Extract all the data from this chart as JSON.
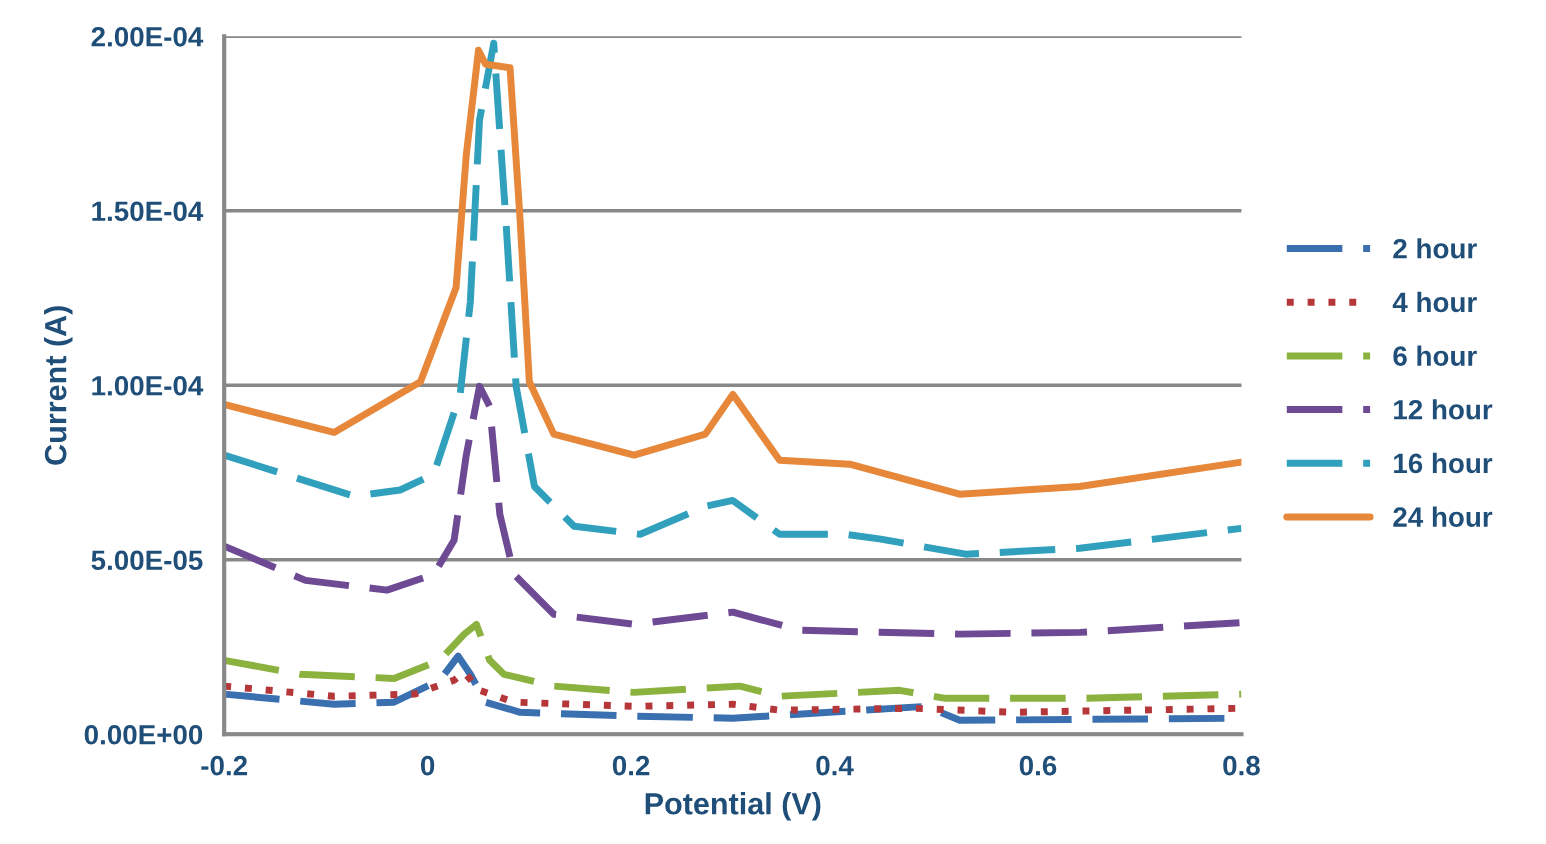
{
  "chart_data": {
    "type": "line",
    "xlabel": "Potential (V)",
    "ylabel": "Current (A)",
    "xlim": [
      -0.2,
      0.8
    ],
    "xticks": [
      -0.2,
      0,
      0.2,
      0.4,
      0.6,
      0.8
    ],
    "ylim": [
      0,
      0.0002
    ],
    "yticks": [
      {
        "value": 0,
        "label": "0.00E+00"
      },
      {
        "value": 5e-05,
        "label": "5.00E-05"
      },
      {
        "value": 0.0001,
        "label": "1.00E-04"
      },
      {
        "value": 0.00015,
        "label": "1.50E-04"
      },
      {
        "value": 0.0002,
        "label": "2.00E-04"
      }
    ],
    "grid": "y",
    "legend": "right",
    "marker": "none",
    "series": [
      {
        "name": "2 hour",
        "color": "#3a6fb0",
        "line_style": "dashed",
        "x": [
          -0.2,
          -0.092,
          -0.033,
          0.012,
          0.03,
          0.042,
          0.057,
          0.091,
          0.203,
          0.3,
          0.49,
          0.523,
          0.8
        ],
        "values": [
          1.15e-05,
          8.6e-06,
          9.2e-06,
          1.55e-05,
          2.24e-05,
          1.72e-05,
          9.2e-06,
          6.3e-06,
          5.2e-06,
          4.6e-06,
          8e-06,
          4e-06,
          4.6e-06
        ]
      },
      {
        "name": "4 hour",
        "color": "#b5373a",
        "line_style": "dotted",
        "x": [
          -0.2,
          -0.092,
          -0.013,
          0.026,
          0.036,
          0.051,
          0.085,
          0.203,
          0.3,
          0.346,
          0.478,
          0.576,
          0.8
        ],
        "values": [
          1.38e-05,
          1.09e-05,
          1.15e-05,
          1.55e-05,
          1.78e-05,
          1.26e-05,
          9.2e-06,
          8e-06,
          8.6e-06,
          6.9e-06,
          7.45e-06,
          6.3e-06,
          7.45e-06
        ]
      },
      {
        "name": "6 hour",
        "color": "#8bb13f",
        "line_style": "dashed",
        "x": [
          -0.2,
          -0.125,
          -0.033,
          0.012,
          0.036,
          0.048,
          0.061,
          0.075,
          0.124,
          0.203,
          0.307,
          0.346,
          0.464,
          0.509,
          0.641,
          0.8
        ],
        "values": [
          2.12e-05,
          1.72e-05,
          1.6e-05,
          2.12e-05,
          2.87e-05,
          3.15e-05,
          2.12e-05,
          1.72e-05,
          1.38e-05,
          1.2e-05,
          1.38e-05,
          1.09e-05,
          1.26e-05,
          1.03e-05,
          1.03e-05,
          1.15e-05
        ]
      },
      {
        "name": "12 hour",
        "color": "#6f4a94",
        "line_style": "dashed",
        "x": [
          -0.2,
          -0.12,
          -0.04,
          0.006,
          0.026,
          0.038,
          0.051,
          0.061,
          0.071,
          0.085,
          0.124,
          0.203,
          0.3,
          0.366,
          0.523,
          0.641,
          0.8
        ],
        "values": [
          5.39e-05,
          4.41e-05,
          4.13e-05,
          4.58e-05,
          5.56e-05,
          8e-05,
          9.97e-05,
          9.4e-05,
          6.3e-05,
          4.58e-05,
          3.44e-05,
          3.15e-05,
          3.5e-05,
          2.98e-05,
          2.87e-05,
          2.92e-05,
          3.2e-05
        ]
      },
      {
        "name": "16 hour",
        "color": "#31a0bd",
        "line_style": "dashed",
        "x": [
          -0.2,
          -0.072,
          -0.027,
          0.006,
          0.032,
          0.042,
          0.051,
          0.065,
          0.077,
          0.087,
          0.105,
          0.144,
          0.209,
          0.273,
          0.3,
          0.346,
          0.411,
          0.444,
          0.529,
          0.641,
          0.8
        ],
        "values": [
          8e-05,
          6.82e-05,
          7e-05,
          7.45e-05,
          9.74e-05,
          0.000124,
          0.000176,
          0.000198,
          0.000147,
          9.97e-05,
          7.1e-05,
          5.96e-05,
          5.73e-05,
          6.53e-05,
          6.7e-05,
          5.73e-05,
          5.73e-05,
          5.6e-05,
          5.16e-05,
          5.33e-05,
          5.9e-05
        ]
      },
      {
        "name": "24 hour",
        "color": "#e6873a",
        "line_style": "solid",
        "x": [
          -0.2,
          -0.092,
          -0.007,
          0.028,
          0.038,
          0.05,
          0.057,
          0.081,
          0.091,
          0.1,
          0.124,
          0.203,
          0.273,
          0.3,
          0.346,
          0.415,
          0.523,
          0.641,
          0.8
        ],
        "values": [
          9.45e-05,
          8.65e-05,
          0.000101,
          0.000128,
          0.000166,
          0.000196,
          0.000192,
          0.000191,
          0.000147,
          0.000101,
          8.6e-05,
          8e-05,
          8.6e-05,
          9.74e-05,
          7.85e-05,
          7.74e-05,
          6.88e-05,
          7.1e-05,
          7.8e-05
        ]
      }
    ]
  }
}
